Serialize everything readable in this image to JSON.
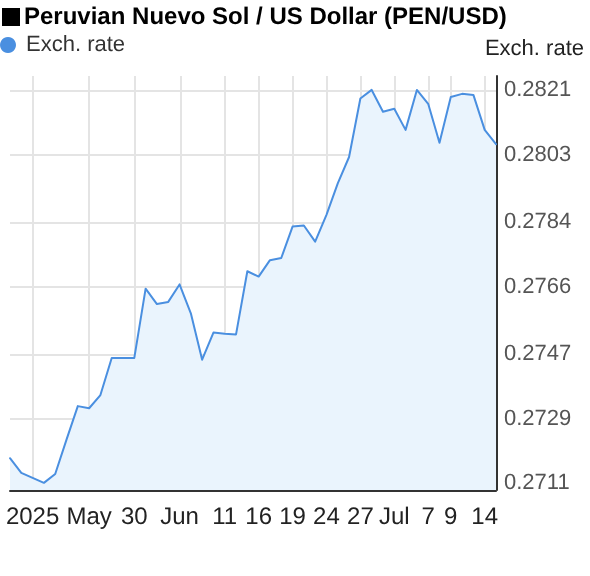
{
  "chart_data": {
    "type": "area",
    "title": "Peruvian Nuevo Sol / US Dollar (PEN/USD)",
    "ylabel": "Exch. rate",
    "categories": [
      null,
      null,
      "2025",
      null,
      null,
      null,
      null,
      "May",
      null,
      null,
      null,
      "30",
      null,
      null,
      null,
      "Jun",
      null,
      null,
      null,
      "11",
      null,
      null,
      "16",
      null,
      null,
      "19",
      null,
      null,
      "24",
      null,
      null,
      "27",
      null,
      null,
      "Jul",
      null,
      null,
      "7",
      null,
      "9",
      null,
      null,
      "14",
      null
    ],
    "series": [
      {
        "name": "Exch. rate",
        "color": "#4a8fe0",
        "values": [
          0.27179,
          0.27138,
          0.27124,
          0.2711,
          0.27135,
          0.27231,
          0.27325,
          0.27319,
          0.27356,
          0.2746,
          0.2746,
          0.2746,
          0.27654,
          0.27611,
          0.27617,
          0.27666,
          0.27585,
          0.27455,
          0.27531,
          0.27528,
          0.27526,
          0.27703,
          0.27688,
          0.27734,
          0.2774,
          0.27828,
          0.27831,
          0.27786,
          0.27861,
          0.27949,
          0.28023,
          0.28187,
          0.28211,
          0.2815,
          0.28158,
          0.28099,
          0.28211,
          0.28172,
          0.28063,
          0.28191,
          0.282,
          0.28197,
          0.28099,
          0.28059
        ]
      }
    ],
    "ylim": [
      0.2709,
      0.2825
    ],
    "yticks": [
      0.2711,
      0.2729,
      0.2747,
      0.2766,
      0.2784,
      0.2803,
      0.2821
    ],
    "grid": true,
    "legend": "top left",
    "marker": "none",
    "line_style": "solid"
  }
}
